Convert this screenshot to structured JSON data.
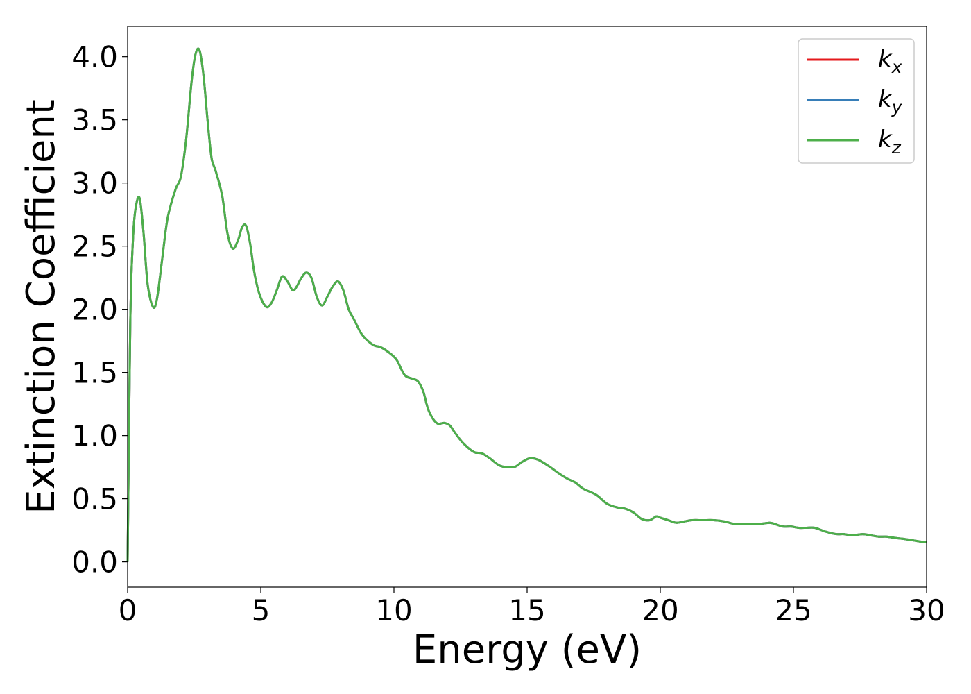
{
  "chart_data": {
    "type": "line",
    "title": "",
    "xlabel": "Energy (eV)",
    "ylabel": "Extinction Coefficient",
    "xlim": [
      0,
      30
    ],
    "ylim": [
      -0.2,
      4.24
    ],
    "xticks": [
      "0",
      "5",
      "10",
      "15",
      "20",
      "25",
      "30"
    ],
    "yticks": [
      "0.0",
      "0.5",
      "1.0",
      "1.5",
      "2.0",
      "2.5",
      "3.0",
      "3.5",
      "4.0"
    ],
    "grid": false,
    "legend_position": "top-right",
    "series": [
      {
        "name": "k_x",
        "label_base": "k",
        "label_sub": "x",
        "color": "#e41a1c"
      },
      {
        "name": "k_y",
        "label_base": "k",
        "label_sub": "y",
        "color": "#377eb8"
      },
      {
        "name": "k_z",
        "label_base": "k",
        "label_sub": "z",
        "color": "#4daf4a"
      }
    ],
    "shared_values": {
      "x": [
        0,
        0.1,
        0.2,
        0.3,
        0.45,
        0.6,
        0.75,
        0.95,
        1.1,
        1.3,
        1.5,
        1.8,
        2.0,
        2.2,
        2.4,
        2.55,
        2.7,
        2.85,
        3.0,
        3.15,
        3.3,
        3.55,
        3.75,
        3.95,
        4.15,
        4.3,
        4.45,
        4.6,
        4.75,
        4.95,
        5.2,
        5.4,
        5.6,
        5.8,
        6.0,
        6.2,
        6.35,
        6.5,
        6.7,
        6.9,
        7.1,
        7.3,
        7.5,
        7.7,
        7.9,
        8.1,
        8.3,
        8.5,
        8.8,
        9.2,
        9.5,
        9.8,
        10.1,
        10.4,
        10.7,
        10.9,
        11.1,
        11.3,
        11.6,
        11.9,
        12.1,
        12.3,
        12.6,
        13.0,
        13.3,
        13.6,
        14.0,
        14.5,
        14.8,
        15.1,
        15.4,
        15.8,
        16.2,
        16.5,
        16.8,
        17.1,
        17.6,
        18.0,
        18.4,
        18.7,
        19.0,
        19.3,
        19.6,
        19.85,
        20.0,
        20.3,
        20.6,
        20.9,
        21.2,
        21.6,
        22.0,
        22.4,
        22.8,
        23.2,
        23.7,
        24.1,
        24.3,
        24.6,
        24.9,
        25.2,
        25.5,
        25.8,
        26.2,
        26.6,
        26.9,
        27.2,
        27.6,
        27.9,
        28.2,
        28.5,
        28.8,
        29.2,
        29.5,
        29.8,
        30.0
      ],
      "y": [
        0.0,
        1.9,
        2.55,
        2.8,
        2.88,
        2.6,
        2.2,
        2.02,
        2.08,
        2.4,
        2.72,
        2.95,
        3.05,
        3.35,
        3.8,
        4.02,
        4.05,
        3.85,
        3.5,
        3.2,
        3.1,
        2.9,
        2.6,
        2.48,
        2.55,
        2.65,
        2.66,
        2.52,
        2.3,
        2.12,
        2.02,
        2.05,
        2.15,
        2.26,
        2.22,
        2.15,
        2.18,
        2.24,
        2.29,
        2.25,
        2.1,
        2.03,
        2.1,
        2.18,
        2.22,
        2.15,
        2.0,
        1.92,
        1.8,
        1.72,
        1.7,
        1.66,
        1.6,
        1.48,
        1.45,
        1.43,
        1.35,
        1.2,
        1.1,
        1.1,
        1.08,
        1.02,
        0.94,
        0.87,
        0.86,
        0.82,
        0.76,
        0.75,
        0.79,
        0.82,
        0.81,
        0.76,
        0.7,
        0.66,
        0.63,
        0.58,
        0.53,
        0.46,
        0.43,
        0.42,
        0.39,
        0.34,
        0.33,
        0.36,
        0.35,
        0.33,
        0.31,
        0.32,
        0.33,
        0.33,
        0.33,
        0.32,
        0.3,
        0.3,
        0.3,
        0.31,
        0.3,
        0.28,
        0.28,
        0.27,
        0.27,
        0.27,
        0.24,
        0.22,
        0.22,
        0.21,
        0.22,
        0.21,
        0.2,
        0.2,
        0.19,
        0.18,
        0.17,
        0.16,
        0.16
      ]
    }
  }
}
